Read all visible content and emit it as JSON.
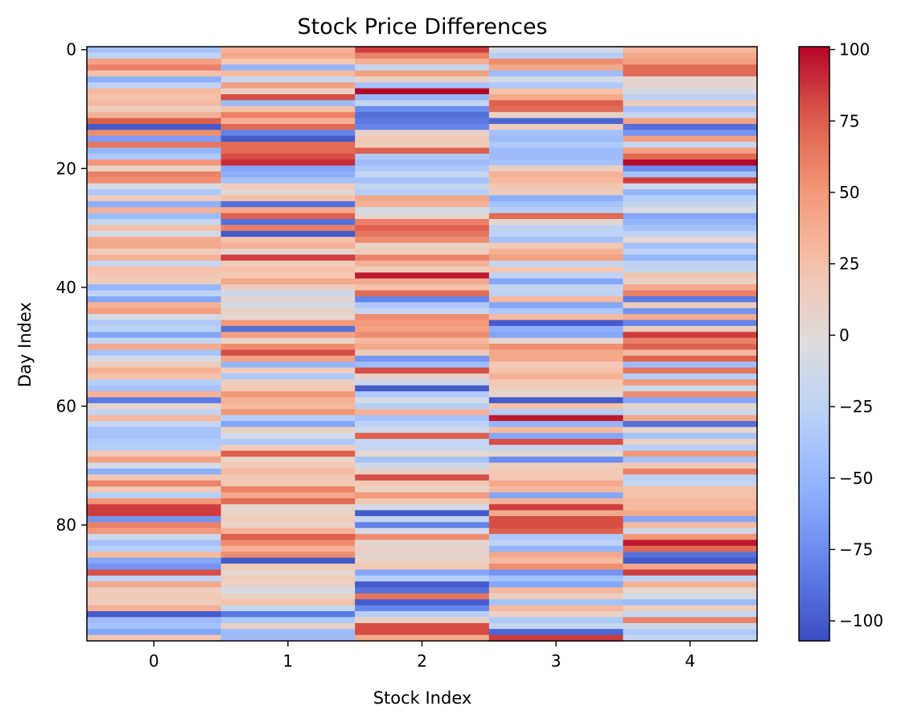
{
  "chart_data": {
    "type": "heatmap",
    "title": "Stock Price Differences",
    "xlabel": "Stock Index",
    "ylabel": "Day Index",
    "x_categories": [
      "0",
      "1",
      "2",
      "3",
      "4"
    ],
    "n_rows": 100,
    "yticks": [
      0,
      20,
      40,
      60,
      80
    ],
    "ytick_labels": [
      "0",
      "20",
      "40",
      "60",
      "80"
    ],
    "colormap": "coolwarm",
    "vmin": -107,
    "vmax": 101,
    "colorbar_ticks": [
      100,
      75,
      50,
      25,
      0,
      -25,
      -50,
      -75,
      -100
    ],
    "colorbar_tick_labels": [
      "100",
      "75",
      "50",
      "25",
      "0",
      "−25",
      "−50",
      "−75",
      "−100"
    ],
    "values": [
      [
        -40,
        35,
        85,
        -10,
        30
      ],
      [
        -25,
        40,
        60,
        -30,
        40
      ],
      [
        45,
        20,
        35,
        55,
        45
      ],
      [
        60,
        -50,
        -20,
        40,
        70
      ],
      [
        25,
        30,
        45,
        -45,
        70
      ],
      [
        -55,
        -20,
        10,
        -10,
        5
      ],
      [
        -25,
        45,
        -40,
        -35,
        5
      ],
      [
        30,
        10,
        101,
        25,
        -10
      ],
      [
        25,
        80,
        -50,
        40,
        -25
      ],
      [
        30,
        -45,
        -20,
        75,
        15
      ],
      [
        15,
        25,
        -75,
        70,
        -40
      ],
      [
        35,
        60,
        -90,
        10,
        -20
      ],
      [
        75,
        35,
        -85,
        -95,
        45
      ],
      [
        -100,
        70,
        -80,
        15,
        -90
      ],
      [
        55,
        -80,
        10,
        -40,
        -70
      ],
      [
        -65,
        -100,
        20,
        -45,
        45
      ],
      [
        65,
        70,
        15,
        -35,
        -20
      ],
      [
        -50,
        70,
        75,
        -45,
        45
      ],
      [
        -35,
        80,
        -35,
        -45,
        70
      ],
      [
        50,
        90,
        -45,
        -40,
        101
      ],
      [
        10,
        -60,
        -35,
        15,
        -75
      ],
      [
        60,
        -55,
        -20,
        35,
        -40
      ],
      [
        55,
        -40,
        -40,
        30,
        85
      ],
      [
        -10,
        15,
        -20,
        20,
        -15
      ],
      [
        -35,
        5,
        -30,
        15,
        -50
      ],
      [
        15,
        25,
        40,
        -55,
        -30
      ],
      [
        -55,
        -90,
        35,
        -40,
        -20
      ],
      [
        35,
        40,
        -10,
        -30,
        -5
      ],
      [
        -45,
        75,
        5,
        70,
        -60
      ],
      [
        -20,
        -90,
        60,
        5,
        -50
      ],
      [
        25,
        60,
        75,
        -25,
        -40
      ],
      [
        -10,
        -100,
        65,
        -25,
        -25
      ],
      [
        40,
        25,
        55,
        -40,
        5
      ],
      [
        40,
        35,
        10,
        20,
        -40
      ],
      [
        15,
        5,
        15,
        35,
        -25
      ],
      [
        35,
        85,
        60,
        45,
        -50
      ],
      [
        -20,
        15,
        35,
        -20,
        -25
      ],
      [
        25,
        25,
        15,
        20,
        -20
      ],
      [
        20,
        20,
        95,
        -25,
        20
      ],
      [
        15,
        40,
        40,
        -60,
        10
      ],
      [
        -50,
        15,
        25,
        -20,
        40
      ],
      [
        -25,
        -15,
        70,
        -25,
        60
      ],
      [
        -60,
        5,
        -80,
        30,
        -85
      ],
      [
        35,
        -10,
        -35,
        -60,
        15
      ],
      [
        45,
        10,
        -20,
        -35,
        -70
      ],
      [
        -10,
        5,
        55,
        30,
        40
      ],
      [
        -35,
        50,
        50,
        -100,
        -80
      ],
      [
        -25,
        -90,
        45,
        -55,
        15
      ],
      [
        -60,
        45,
        55,
        -60,
        85
      ],
      [
        -20,
        10,
        30,
        5,
        60
      ],
      [
        40,
        55,
        40,
        55,
        75
      ],
      [
        -40,
        80,
        15,
        40,
        30
      ],
      [
        -10,
        45,
        -70,
        40,
        75
      ],
      [
        15,
        -50,
        -45,
        20,
        -45
      ],
      [
        35,
        15,
        80,
        25,
        65
      ],
      [
        25,
        -35,
        10,
        35,
        -30
      ],
      [
        -30,
        15,
        -15,
        20,
        50
      ],
      [
        -40,
        20,
        -100,
        15,
        -15
      ],
      [
        35,
        50,
        -35,
        5,
        55
      ],
      [
        -85,
        35,
        -10,
        -100,
        -60
      ],
      [
        5,
        30,
        -30,
        25,
        5
      ],
      [
        -20,
        50,
        35,
        -30,
        -15
      ],
      [
        30,
        -30,
        -40,
        95,
        40
      ],
      [
        -20,
        -60,
        -25,
        -50,
        -90
      ],
      [
        -40,
        10,
        -15,
        30,
        5
      ],
      [
        -40,
        -10,
        75,
        -60,
        -40
      ],
      [
        -35,
        -35,
        -20,
        80,
        10
      ],
      [
        -30,
        15,
        -20,
        -20,
        -30
      ],
      [
        20,
        75,
        5,
        5,
        50
      ],
      [
        45,
        10,
        -40,
        -75,
        -40
      ],
      [
        -10,
        20,
        -15,
        15,
        20
      ],
      [
        -55,
        30,
        10,
        20,
        60
      ],
      [
        20,
        20,
        80,
        20,
        -25
      ],
      [
        60,
        20,
        20,
        40,
        -20
      ],
      [
        20,
        60,
        10,
        30,
        25
      ],
      [
        -30,
        40,
        50,
        -60,
        25
      ],
      [
        50,
        70,
        20,
        35,
        30
      ],
      [
        85,
        5,
        -10,
        85,
        30
      ],
      [
        85,
        10,
        -100,
        40,
        40
      ],
      [
        -70,
        15,
        -20,
        80,
        -60
      ],
      [
        60,
        10,
        -80,
        80,
        30
      ],
      [
        50,
        35,
        -10,
        75,
        -15
      ],
      [
        -15,
        75,
        55,
        -35,
        50
      ],
      [
        -40,
        55,
        5,
        -25,
        95
      ],
      [
        -30,
        35,
        10,
        -50,
        70
      ],
      [
        30,
        55,
        5,
        40,
        -90
      ],
      [
        -60,
        -100,
        10,
        30,
        -100
      ],
      [
        -70,
        15,
        20,
        55,
        40
      ],
      [
        80,
        5,
        -60,
        -70,
        85
      ],
      [
        -25,
        15,
        -30,
        -40,
        -25
      ],
      [
        40,
        10,
        -100,
        -60,
        35
      ],
      [
        15,
        -10,
        -90,
        30,
        5
      ],
      [
        20,
        10,
        65,
        15,
        -10
      ],
      [
        15,
        25,
        -100,
        -40,
        -45
      ],
      [
        35,
        -20,
        -80,
        30,
        15
      ],
      [
        -100,
        -85,
        -30,
        10,
        -20
      ],
      [
        -45,
        -35,
        10,
        -35,
        60
      ],
      [
        -40,
        10,
        80,
        -20,
        -15
      ],
      [
        -60,
        -45,
        80,
        -95,
        -35
      ],
      [
        20,
        -45,
        40,
        85,
        -20
      ]
    ]
  }
}
